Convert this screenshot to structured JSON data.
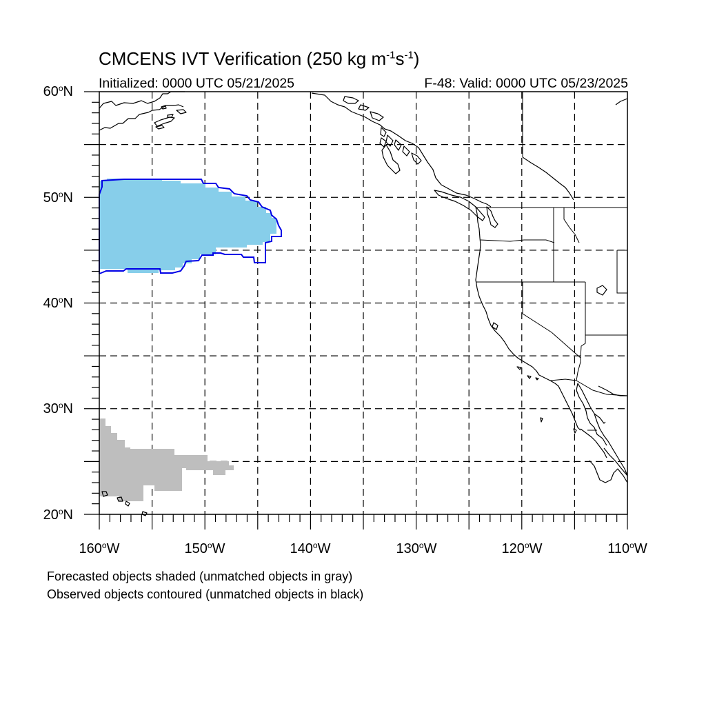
{
  "title": {
    "prefix": "CMCENS IVT Verification (250 kg m",
    "exp1": "-1",
    "mid": "s",
    "exp2": "-1",
    "suffix": ")"
  },
  "subtitle_left": "Initialized: 0000 UTC 05/21/2025",
  "subtitle_right": "F-48: Valid: 0000 UTC 05/23/2025",
  "lat_labels": [
    {
      "value": "60",
      "hemi": "N"
    },
    {
      "value": "50",
      "hemi": "N"
    },
    {
      "value": "40",
      "hemi": "N"
    },
    {
      "value": "30",
      "hemi": "N"
    },
    {
      "value": "20",
      "hemi": "N"
    }
  ],
  "lon_labels": [
    {
      "value": "160",
      "hemi": "W"
    },
    {
      "value": "150",
      "hemi": "W"
    },
    {
      "value": "140",
      "hemi": "W"
    },
    {
      "value": "130",
      "hemi": "W"
    },
    {
      "value": "120",
      "hemi": "W"
    },
    {
      "value": "110",
      "hemi": "W"
    }
  ],
  "degree_symbol": "o",
  "footnotes": [
    "Forecasted objects shaded (unmatched objects in gray)",
    "Observed objects contoured (unmatched objects in black)"
  ],
  "colors": {
    "matched_forecast_fill": "#87ceea",
    "matched_observed_contour": "#0000e6",
    "unmatched_forecast_fill": "#bebebe",
    "coastline": "#000000",
    "grid": "#000000"
  },
  "map_extent": {
    "lon": [
      -160,
      -110
    ],
    "lat": [
      20,
      60
    ]
  }
}
